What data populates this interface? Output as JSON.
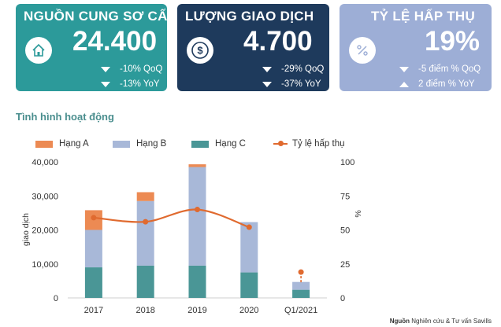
{
  "cards": [
    {
      "title": "NGUỒN CUNG SƠ CẤP",
      "value": "24.400",
      "icon": "house-icon",
      "color": "#2c9a9a",
      "deltas": [
        {
          "dir": "down",
          "text": "-10% QoQ"
        },
        {
          "dir": "down",
          "text": "-13% YoY"
        }
      ]
    },
    {
      "title": "LƯỢNG GIAO DỊCH",
      "value": "4.700",
      "icon": "dollar-coin-icon",
      "color": "#1e3a5c",
      "deltas": [
        {
          "dir": "down",
          "text": "-29% QoQ"
        },
        {
          "dir": "down",
          "text": "-37% YoY"
        }
      ]
    },
    {
      "title": "TỶ LỆ HẤP THỤ",
      "value": "19%",
      "icon": "percent-icon",
      "color": "#9daed6",
      "deltas": [
        {
          "dir": "down",
          "text": "-5 điểm % QoQ"
        },
        {
          "dir": "up",
          "text": "2 điểm % YoY"
        }
      ]
    }
  ],
  "section_title": "Tình hình hoạt động",
  "source_label": "Nguồn",
  "source_text": "Nghiên cứu & Tư vấn Savills",
  "colors": {
    "hang_a": "#ec8a53",
    "hang_b": "#a8b8d8",
    "hang_c": "#4a9696",
    "absorption": "#e06a2f"
  },
  "chart_data": {
    "type": "bar",
    "stacked": true,
    "categories": [
      "2017",
      "2018",
      "2019",
      "2020",
      "Q1/2021"
    ],
    "series": [
      {
        "name": "Hạng C",
        "values": [
          9000,
          9500,
          9500,
          7500,
          2400
        ]
      },
      {
        "name": "Hạng B",
        "values": [
          11000,
          19000,
          29000,
          14800,
          2300
        ]
      },
      {
        "name": "Hạng A",
        "values": [
          5800,
          2600,
          800,
          0,
          0
        ]
      }
    ],
    "line_series": {
      "name": "Tỷ lệ hấp thụ",
      "axis": "right",
      "values": [
        59,
        56,
        65,
        52,
        19
      ],
      "error_bar": {
        "index": 4,
        "low": 11,
        "high": 19
      }
    },
    "ylabel": "giao dịch",
    "y2label": "%",
    "ylim": [
      0,
      40000
    ],
    "y2lim": [
      0,
      100
    ],
    "yticks": [
      "0",
      "10,000",
      "20,000",
      "30,000",
      "40,000"
    ],
    "y2ticks": [
      "0",
      "25",
      "50",
      "75",
      "100"
    ],
    "legend_position": "top"
  }
}
